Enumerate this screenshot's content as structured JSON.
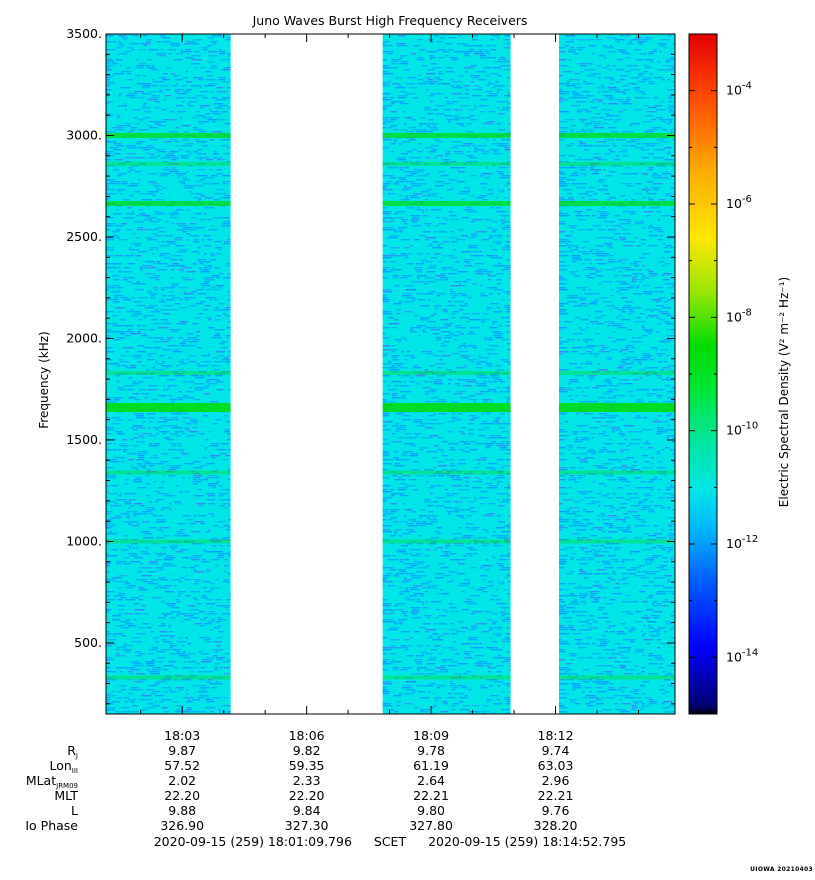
{
  "chart_data": {
    "type": "heatmap",
    "title": "Juno Waves Burst High Frequency Receivers",
    "ylabel": "Frequency (kHz)",
    "ylim": [
      150,
      3500
    ],
    "y_ticks": [
      "500.",
      "1000.",
      "1500.",
      "2000.",
      "2500.",
      "3000.",
      "3500."
    ],
    "y_tick_values": [
      500,
      1000,
      1500,
      2000,
      2500,
      3000,
      3500
    ],
    "x_range": [
      "18:01:09.796",
      "18:14:52.795"
    ],
    "x_ticks": [
      "18:03",
      "18:06",
      "18:09",
      "18:12"
    ],
    "x_tick_minutes": [
      3,
      6,
      9,
      12
    ],
    "data_intervals": [
      [
        "18:01:10",
        "18:04:10"
      ],
      [
        "18:07:50",
        "18:10:55"
      ],
      [
        "18:12:05",
        "18:14:53"
      ]
    ],
    "background_level": "10^-12",
    "emission_bands_khz": [
      {
        "freq": 1660,
        "strength": "strong"
      },
      {
        "freq": 3000,
        "strength": "medium"
      },
      {
        "freq": 2665,
        "strength": "medium"
      },
      {
        "freq": 1830,
        "strength": "weak"
      },
      {
        "freq": 1000,
        "strength": "weak"
      },
      {
        "freq": 1340,
        "strength": "weak"
      },
      {
        "freq": 330,
        "strength": "weak"
      },
      {
        "freq": 2860,
        "strength": "weak"
      }
    ],
    "colorbar": {
      "label": "Electric Spectral Density (V² m⁻² Hz⁻¹)",
      "scale": "log",
      "range": [
        1e-15,
        0.001
      ],
      "ticks": [
        "10-4",
        "10-6",
        "10-8",
        "10-10",
        "10-12",
        "10-14"
      ],
      "tick_exponents": [
        -4,
        -6,
        -8,
        -10,
        -12,
        -14
      ],
      "colors": [
        "#000000",
        "#00008b",
        "#0000ff",
        "#0096ff",
        "#00e6e6",
        "#00e678",
        "#00dc00",
        "#c8e600",
        "#ffd700",
        "#ff8c00",
        "#ff2800",
        "#e60000"
      ]
    }
  },
  "ephemeris": {
    "labels": [
      "R",
      "Lon",
      "MLat",
      "MLT",
      "L",
      "Io Phase"
    ],
    "label_subs": [
      "J",
      "III",
      "JRM09",
      "",
      "",
      ""
    ],
    "columns": [
      {
        "time": "18:03",
        "values": [
          "9.87",
          "57.52",
          "2.02",
          "22.20",
          "9.88",
          "326.90"
        ]
      },
      {
        "time": "18:06",
        "values": [
          "9.82",
          "59.35",
          "2.33",
          "22.20",
          "9.84",
          "327.30"
        ]
      },
      {
        "time": "18:09",
        "values": [
          "9.78",
          "61.19",
          "2.64",
          "22.21",
          "9.80",
          "327.80"
        ]
      },
      {
        "time": "18:12",
        "values": [
          "9.74",
          "63.03",
          "2.96",
          "22.21",
          "9.76",
          "328.20"
        ]
      }
    ]
  },
  "footer": {
    "start": "2020-09-15 (259) 18:01:09.796",
    "separator": "SCET",
    "end": "2020-09-15 (259) 18:14:52.795"
  },
  "stamp": "UIOWA 20210403",
  "colors": {
    "background": "#00e6e6",
    "noise": "#0096ff",
    "band": "#00dc00"
  }
}
